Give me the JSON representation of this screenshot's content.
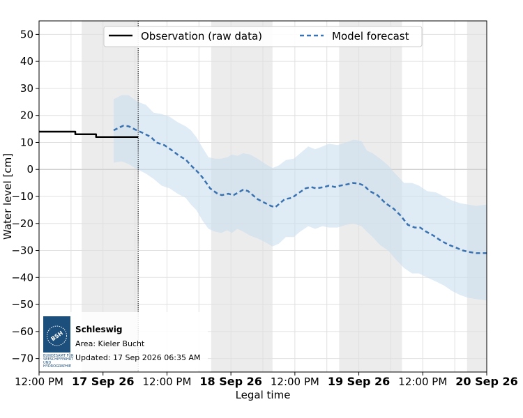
{
  "chart_data": {
    "type": "line",
    "xlabel": "Legal time",
    "ylabel": "Water level [cm]",
    "ylim": [
      -75,
      55
    ],
    "yticks": [
      50,
      40,
      30,
      20,
      10,
      0,
      -10,
      -20,
      -30,
      -40,
      -50,
      -60,
      -70
    ],
    "x_tick_labels": [
      {
        "label": "12:00 PM",
        "bold": false,
        "hours": 0
      },
      {
        "label": "17 Sep 26",
        "bold": true,
        "hours": 12
      },
      {
        "label": "12:00 PM",
        "bold": false,
        "hours": 24
      },
      {
        "label": "18 Sep 26",
        "bold": true,
        "hours": 36
      },
      {
        "label": "12:00 PM",
        "bold": false,
        "hours": 48
      },
      {
        "label": "19 Sep 26",
        "bold": true,
        "hours": 60
      },
      {
        "label": "12:00 PM",
        "bold": false,
        "hours": 72
      },
      {
        "label": "20 Sep 26",
        "bold": true,
        "hours": 84
      }
    ],
    "x_range_hours": [
      0,
      84
    ],
    "now_hours": 18.6,
    "night_shading_hours": [
      [
        8,
        18.6
      ],
      [
        32.3,
        43.8
      ],
      [
        56.3,
        68.1
      ],
      [
        80.3,
        84
      ]
    ],
    "legend": {
      "placement": "top",
      "labels": [
        "Observation (raw data)",
        "Model forecast"
      ]
    },
    "series": [
      {
        "name": "Observation (raw data)",
        "style": "solid",
        "color": "#000000",
        "points": [
          [
            0,
            14
          ],
          [
            6.8,
            14
          ],
          [
            6.8,
            13
          ],
          [
            10.7,
            13
          ],
          [
            10.7,
            12
          ],
          [
            18.6,
            12
          ]
        ]
      },
      {
        "name": "Model forecast",
        "style": "dashed",
        "color": "#3a72b0",
        "points": [
          [
            14,
            14.5
          ],
          [
            15.8,
            16.2
          ],
          [
            16.8,
            16
          ],
          [
            18,
            14.8
          ],
          [
            19.5,
            13.5
          ],
          [
            21,
            12
          ],
          [
            22,
            10
          ],
          [
            23.5,
            9
          ],
          [
            25,
            7
          ],
          [
            26.3,
            5
          ],
          [
            27.5,
            3.7
          ],
          [
            28.5,
            1.5
          ],
          [
            29.8,
            -1
          ],
          [
            30.7,
            -3
          ],
          [
            32.1,
            -7
          ],
          [
            33.5,
            -9
          ],
          [
            34.3,
            -9.5
          ],
          [
            35.5,
            -9
          ],
          [
            36.5,
            -9.5
          ],
          [
            37.4,
            -8.5
          ],
          [
            38.3,
            -7.5
          ],
          [
            39.2,
            -8
          ],
          [
            40.1,
            -9.5
          ],
          [
            41,
            -11
          ],
          [
            42.5,
            -12.5
          ],
          [
            43.5,
            -13.5
          ],
          [
            44.3,
            -14
          ],
          [
            45.2,
            -12.5
          ],
          [
            46.1,
            -11
          ],
          [
            47.5,
            -10.5
          ],
          [
            48.5,
            -9
          ],
          [
            50,
            -7
          ],
          [
            51,
            -6.5
          ],
          [
            52,
            -7
          ],
          [
            53.5,
            -6.5
          ],
          [
            54.4,
            -6
          ],
          [
            55.5,
            -6.5
          ],
          [
            56.5,
            -6
          ],
          [
            57.8,
            -5.5
          ],
          [
            58.9,
            -5
          ],
          [
            60,
            -5.2
          ],
          [
            61,
            -6
          ],
          [
            62,
            -8
          ],
          [
            63.5,
            -9.5
          ],
          [
            65,
            -12.5
          ],
          [
            66.5,
            -14.5
          ],
          [
            67.8,
            -17
          ],
          [
            69.2,
            -20.5
          ],
          [
            70.5,
            -21.5
          ],
          [
            71.5,
            -21.5
          ],
          [
            72.6,
            -23
          ],
          [
            74,
            -24.5
          ],
          [
            75.5,
            -26.5
          ],
          [
            77,
            -28
          ],
          [
            78.3,
            -29
          ],
          [
            79.5,
            -30
          ],
          [
            80.6,
            -30.5
          ],
          [
            82,
            -31
          ],
          [
            84,
            -31
          ]
        ],
        "band": {
          "upper": [
            [
              14,
              26
            ],
            [
              15.5,
              27.5
            ],
            [
              16.8,
              27.5
            ],
            [
              18.5,
              25
            ],
            [
              20,
              24
            ],
            [
              21.5,
              21
            ],
            [
              23,
              20.5
            ],
            [
              24.5,
              19.5
            ],
            [
              26,
              17.5
            ],
            [
              27.5,
              16
            ],
            [
              28.5,
              14.5
            ],
            [
              29.5,
              12
            ],
            [
              30.7,
              8
            ],
            [
              31.8,
              4.5
            ],
            [
              33,
              4
            ],
            [
              34.2,
              4
            ],
            [
              35.3,
              4.5
            ],
            [
              36.2,
              5.5
            ],
            [
              37.2,
              5
            ],
            [
              38.3,
              6
            ],
            [
              39.6,
              5.5
            ],
            [
              41,
              4
            ],
            [
              42.5,
              2
            ],
            [
              43.8,
              0.5
            ],
            [
              45,
              1.5
            ],
            [
              46.3,
              3.5
            ],
            [
              47.8,
              4
            ],
            [
              49,
              6
            ],
            [
              50.5,
              8.5
            ],
            [
              51.8,
              7.5
            ],
            [
              53.2,
              8.5
            ],
            [
              54.4,
              9.5
            ],
            [
              56,
              9
            ],
            [
              57.6,
              10
            ],
            [
              59,
              11
            ],
            [
              60.5,
              10.5
            ],
            [
              61.5,
              7
            ],
            [
              62.6,
              6
            ],
            [
              64,
              4
            ],
            [
              65.5,
              1.5
            ],
            [
              66.8,
              -1.5
            ],
            [
              68.5,
              -5
            ],
            [
              70,
              -5
            ],
            [
              71.3,
              -6
            ],
            [
              72.8,
              -8
            ],
            [
              74.5,
              -8.5
            ],
            [
              76,
              -10
            ],
            [
              77.5,
              -11.5
            ],
            [
              79,
              -12.5
            ],
            [
              80.5,
              -13
            ],
            [
              82,
              -13.5
            ],
            [
              84,
              -13
            ]
          ],
          "lower": [
            [
              14,
              2.5
            ],
            [
              15.5,
              3
            ],
            [
              16.8,
              2
            ],
            [
              18.5,
              0
            ],
            [
              20,
              -1.5
            ],
            [
              21.5,
              -3.5
            ],
            [
              23,
              -6
            ],
            [
              24.5,
              -7
            ],
            [
              26,
              -9
            ],
            [
              27.5,
              -10.5
            ],
            [
              28.5,
              -13
            ],
            [
              29.5,
              -15
            ],
            [
              30.7,
              -19
            ],
            [
              31.8,
              -22
            ],
            [
              33,
              -23
            ],
            [
              34.2,
              -23.5
            ],
            [
              35.3,
              -22.5
            ],
            [
              36.2,
              -23.5
            ],
            [
              37.2,
              -22
            ],
            [
              38.3,
              -23
            ],
            [
              39.6,
              -24.5
            ],
            [
              41,
              -25.5
            ],
            [
              42.5,
              -27
            ],
            [
              43.8,
              -28.5
            ],
            [
              45,
              -27.5
            ],
            [
              46.3,
              -25
            ],
            [
              47.8,
              -25
            ],
            [
              49,
              -23
            ],
            [
              50.5,
              -21
            ],
            [
              51.8,
              -22
            ],
            [
              53.2,
              -21
            ],
            [
              54.4,
              -21.5
            ],
            [
              56,
              -21.5
            ],
            [
              57.6,
              -20.5
            ],
            [
              59,
              -20
            ],
            [
              60.5,
              -21
            ],
            [
              61.5,
              -23
            ],
            [
              62.6,
              -25
            ],
            [
              64,
              -28
            ],
            [
              65.5,
              -30
            ],
            [
              66.8,
              -33
            ],
            [
              68.5,
              -36.5
            ],
            [
              70,
              -38.5
            ],
            [
              71.3,
              -38.5
            ],
            [
              72.8,
              -40
            ],
            [
              74.5,
              -41.5
            ],
            [
              76,
              -43
            ],
            [
              77.5,
              -45
            ],
            [
              79,
              -46.5
            ],
            [
              80.5,
              -47.5
            ],
            [
              82,
              -48
            ],
            [
              84,
              -48.5
            ]
          ]
        }
      }
    ]
  },
  "info_box": {
    "station": "Schleswig",
    "area": "Area: Kieler Bucht",
    "updated": "Updated: 17 Sep 2026 06:35 AM",
    "logo_abbr": "BSH",
    "logo_caption": [
      "BUNDESAMT FÜR",
      "SEESCHIFFFAHRT",
      "UND",
      "HYDROGRAPHIE"
    ]
  },
  "colors": {
    "observation": "#000000",
    "forecast": "#3a72b0",
    "band": "#c9ddef",
    "night_shading": "#ececec",
    "grid": "#e0e0e0",
    "logo": "#1d4f7c"
  }
}
